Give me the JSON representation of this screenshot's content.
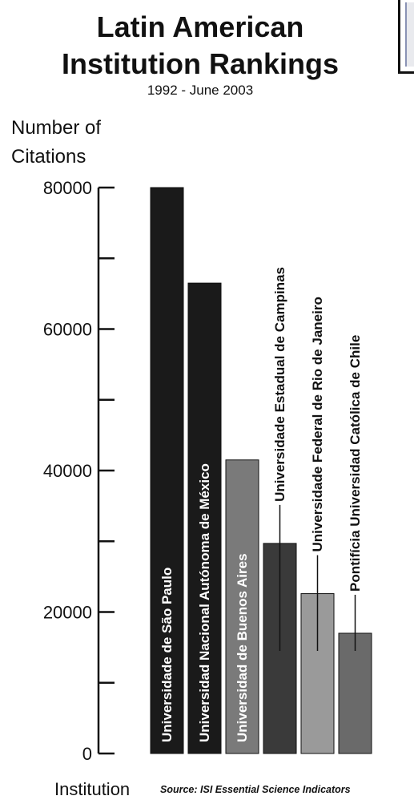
{
  "chart_data": {
    "type": "bar",
    "title": "Latin American Institution Rankings",
    "title_lines": [
      "Latin American",
      "Institution Rankings"
    ],
    "subtitle": "1992 - June 2003",
    "ylabel": "Number of Citations",
    "ylabel_lines": [
      "Number of",
      "Citations"
    ],
    "xlabel": "Institution",
    "source": "Source: ISI Essential Science Indicators",
    "ylim": [
      0,
      80000
    ],
    "yticks": [
      0,
      20000,
      40000,
      60000,
      80000
    ],
    "ytick_labels": [
      "0",
      "20000",
      "40000",
      "60000",
      "80000"
    ],
    "categories": [
      "Universidade de São Paulo",
      "Universidad Nacional Autónoma de México",
      "Universidad de Buenos Aires",
      "Universidade Estadual de Campinas",
      "Universidade Federal de Rio de Janeiro",
      "Pontifícia Universidad Católica de Chile"
    ],
    "values": [
      80000,
      66500,
      41500,
      29700,
      22600,
      17000
    ],
    "colors": [
      "#1a1a1a",
      "#1a1a1a",
      "#7a7a7a",
      "#3a3a3a",
      "#9a9a9a",
      "#6a6a6a"
    ],
    "label_placement": [
      "inside",
      "inside",
      "inside",
      "above",
      "above",
      "above"
    ],
    "grid": false
  }
}
